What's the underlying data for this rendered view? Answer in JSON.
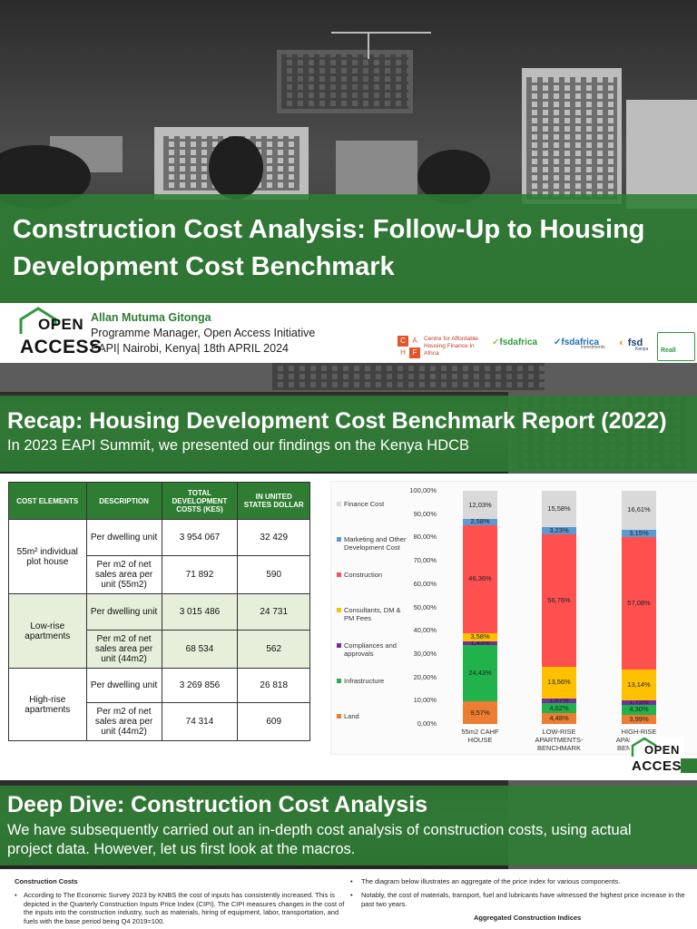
{
  "slide1": {
    "title": "Construction Cost Analysis: Follow-Up to Housing Development Cost Benchmark",
    "logo_top": "OPEN",
    "logo_bottom": "ACCESS",
    "presenter_name": "Allan Mutuma Gitonga",
    "presenter_role": "Programme Manager, Open Access Initiative",
    "event_line": "EAPI| Nairobi, Kenya| 18th APRIL 2024",
    "partners": {
      "cahf_letters": [
        "C",
        "A",
        "H",
        "F"
      ],
      "cahf_text": "Centre for Affordable Housing Finance in Africa",
      "fsd1": "fsdafrica",
      "fsd2": "fsdafrica",
      "fsd2_sub": "investments",
      "fsd3": "fsd",
      "fsd3_sub": "Kenya",
      "reall": "Reall"
    }
  },
  "slide2": {
    "title": "Recap: Housing Development Cost Benchmark Report (2022)",
    "subtitle": "In 2023 EAPI Summit, we presented our findings on the Kenya HDCB",
    "table": {
      "headers": [
        "COST ELEMENTS",
        "DESCRIPTION",
        "TOTAL DEVELOPMENT COSTS (KES)",
        "IN UNITED STATES DOLLAR"
      ],
      "groups": [
        {
          "element": "55m² individual plot house",
          "rows": [
            {
              "desc": "Per dwelling unit",
              "kes": "3 954 067",
              "usd": "32 429"
            },
            {
              "desc": "Per m2 of net sales area per unit (55m2)",
              "kes": "71 892",
              "usd": "590"
            }
          ]
        },
        {
          "element": "Low-rise apartments",
          "rows": [
            {
              "desc": "Per dwelling unit",
              "kes": "3 015 486",
              "usd": "24 731"
            },
            {
              "desc": "Per m2 of net sales area per unit (44m2)",
              "kes": "68 534",
              "usd": "562"
            }
          ]
        },
        {
          "element": "High-rise apartments",
          "rows": [
            {
              "desc": "Per dwelling unit",
              "kes": "3 269 856",
              "usd": "26 818"
            },
            {
              "desc": "Per m2 of net sales area per unit (44m2)",
              "kes": "74 314",
              "usd": "609"
            }
          ]
        }
      ]
    },
    "logo_top": "OPEN",
    "logo_bottom": "ACCESS"
  },
  "chart_data": {
    "type": "bar",
    "stacked": true,
    "categories": [
      "55m2 CAHF HOUSE",
      "LOW-RISE APARTMENTS-BENCHMARK",
      "HIGH-RISE APARTMENTS BENCHMARK"
    ],
    "ylim": [
      0,
      100
    ],
    "yticks": [
      "0,00%",
      "10,00%",
      "20,00%",
      "30,00%",
      "40,00%",
      "50,00%",
      "60,00%",
      "70,00%",
      "80,00%",
      "90,00%",
      "100,00%"
    ],
    "series": [
      {
        "name": "Land",
        "color": "#ed7d31",
        "values": [
          9.57,
          4.48,
          3.99
        ],
        "labels": [
          "9,57%",
          "4,48%",
          "3,99%"
        ]
      },
      {
        "name": "Infrastructure",
        "color": "#21b24b",
        "values": [
          24.43,
          4.62,
          4.3
        ],
        "labels": [
          "24,43%",
          "4,62%",
          "4,30%"
        ]
      },
      {
        "name": "Compliances and approvals",
        "color": "#7030a0",
        "values": [
          1.43,
          1.87,
          1.73
        ],
        "labels": [
          "1,43%",
          "1,87%",
          "1,73%"
        ]
      },
      {
        "name": "Consultants, DM & PM Fees",
        "color": "#ffc000",
        "values": [
          3.58,
          13.56,
          13.14
        ],
        "labels": [
          "3,58%",
          "13,56%",
          "13,14%"
        ]
      },
      {
        "name": "Construction",
        "color": "#ff5050",
        "values": [
          46.36,
          56.76,
          57.08
        ],
        "labels": [
          "46,36%",
          "56,76%",
          "57,08%"
        ]
      },
      {
        "name": "Marketing and Other Development Cost",
        "color": "#5b9bd5",
        "values": [
          2.58,
          3.23,
          3.15
        ],
        "labels": [
          "2,58%",
          "3,23%",
          "3,15%"
        ]
      },
      {
        "name": "Finance Cost",
        "color": "#d9d9d9",
        "values": [
          12.03,
          15.58,
          16.61
        ],
        "labels": [
          "12,03%",
          "15,58%",
          "16,61%"
        ]
      }
    ]
  },
  "slide3": {
    "title": "Deep Dive: Construction Cost Analysis",
    "body": "We have subsequently carried out an in-depth cost analysis of construction costs, using actual project data. However, let us first look at the macros.",
    "left_heading": "Construction Costs",
    "left_bullet": "According to The Economic Survey 2023 by KNBS the cost of inputs has consistently increased. This is depicted in the Quarterly Construction Inputs Price Index (CIPI). The CIPI measures changes in the cost of the inputs into the construction industry, such as materials, hiring of equipment, labor, transportation, and fuels with the base period being Q4 2019=100.",
    "right_bullet1": "The diagram below illustrates an aggregate of the price index for various components.",
    "right_bullet2": "Notably, the cost of materials, transport, fuel and lubricants have witnessed the highest price increase in the past two years.",
    "right_chart_title": "Aggregated Construction Indices"
  }
}
